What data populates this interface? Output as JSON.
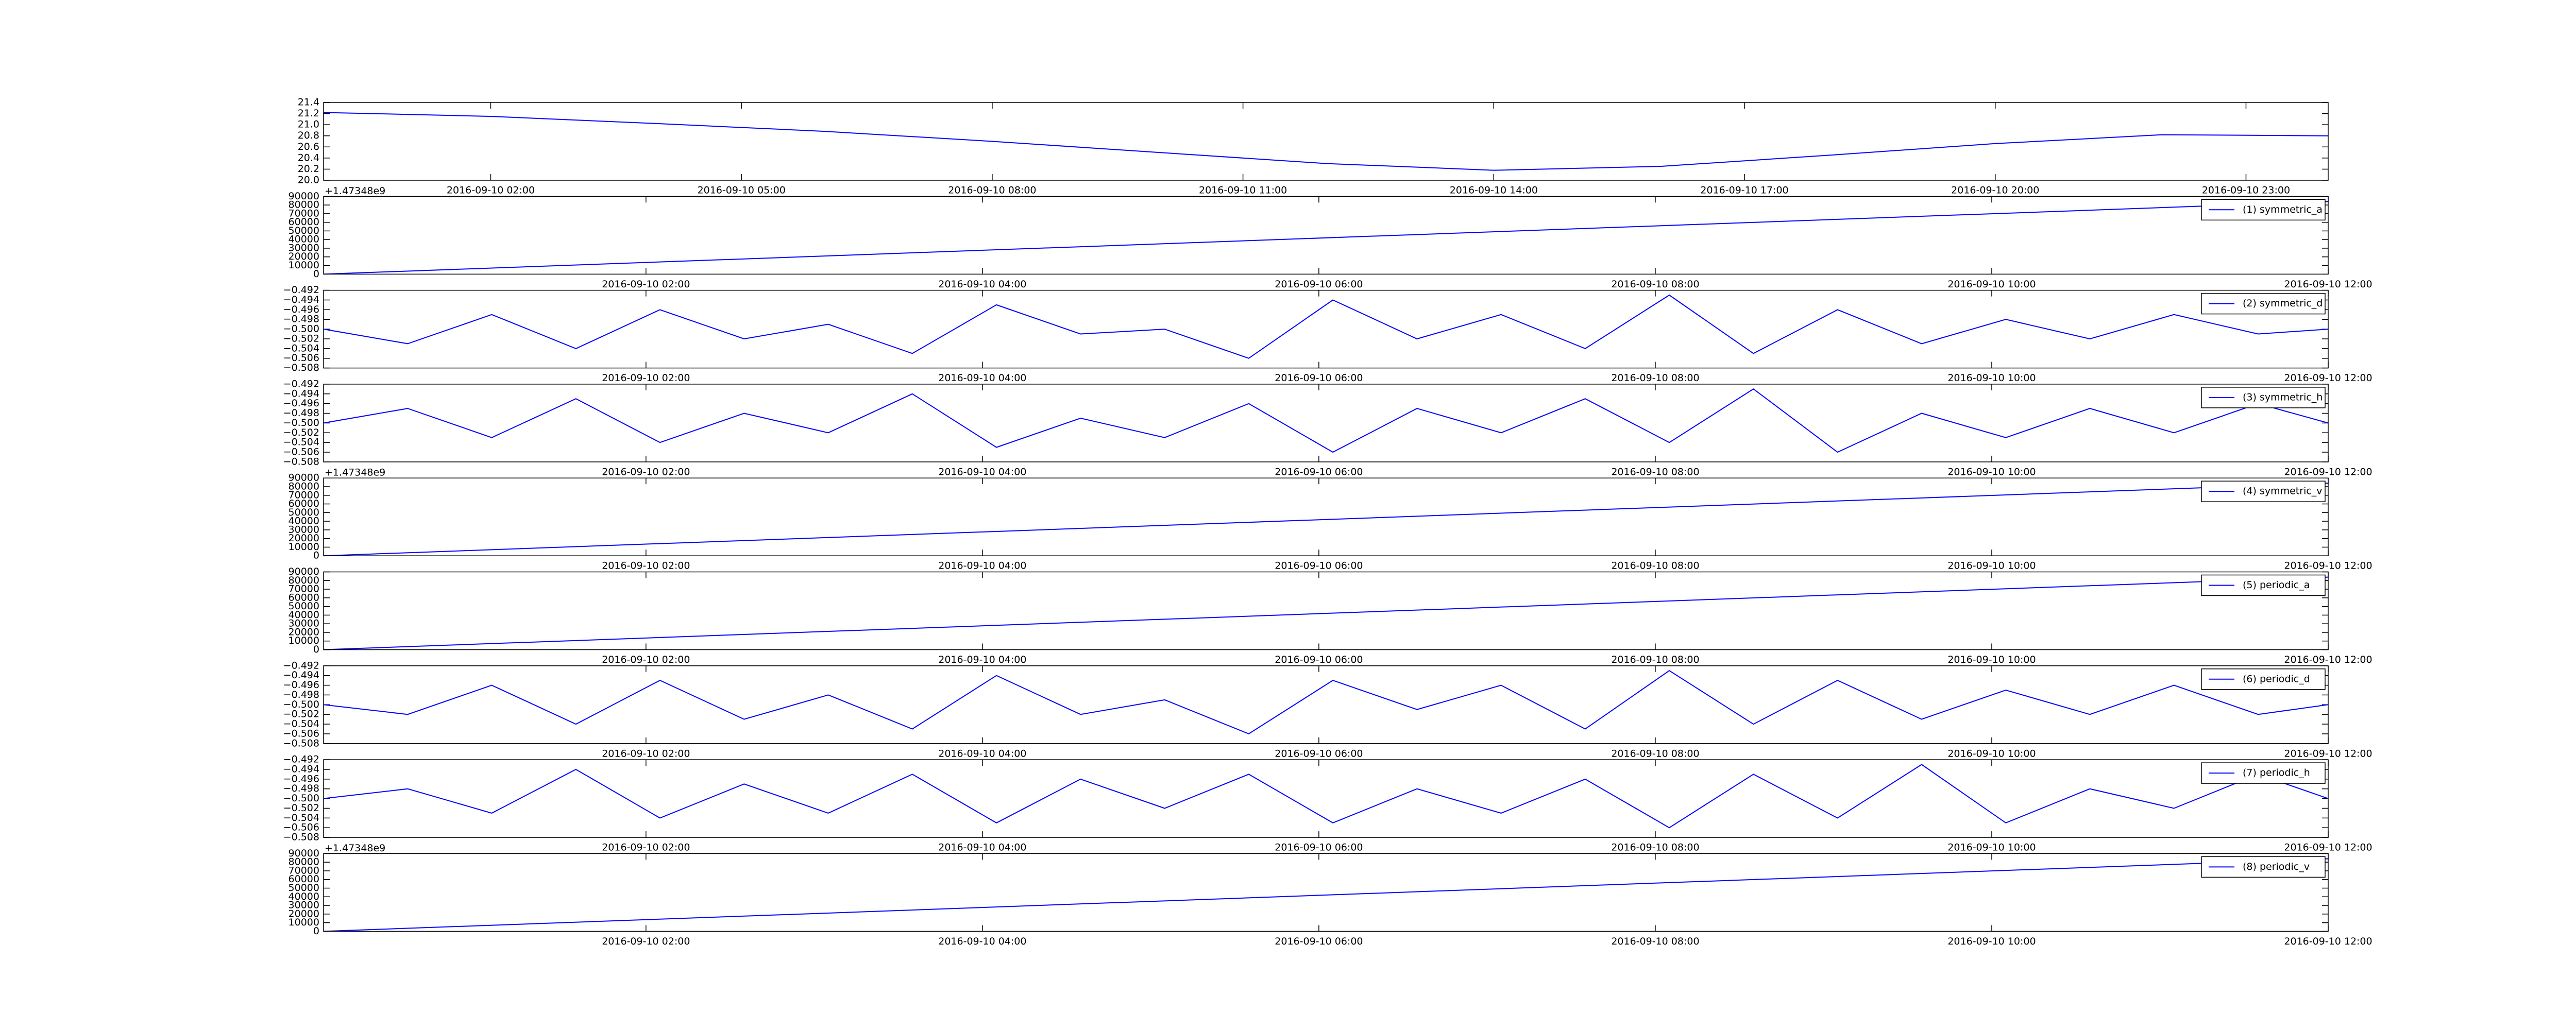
{
  "chart_data": [
    {
      "type": "line",
      "xlim": [
        "2016-09-10 00:00",
        "2016-09-10 23:59"
      ],
      "xticks": [
        "2016-09-10 02:00",
        "2016-09-10 05:00",
        "2016-09-10 08:00",
        "2016-09-10 11:00",
        "2016-09-10 14:00",
        "2016-09-10 17:00",
        "2016-09-10 20:00",
        "2016-09-10 23:00"
      ],
      "ylim": [
        20.0,
        21.4
      ],
      "yticks": [
        {
          "value": 20.0,
          "label": "20.0"
        },
        20.2,
        20.4,
        20.6,
        20.8,
        {
          "value": 21.0,
          "label": "21.0"
        },
        21.2,
        21.4
      ],
      "series": [
        {
          "color": "#0000ff",
          "x": [
            "2016-09-10 00:00",
            "2016-09-10 02:00",
            "2016-09-10 04:00",
            "2016-09-10 06:00",
            "2016-09-10 08:00",
            "2016-09-10 10:00",
            "2016-09-10 12:00",
            "2016-09-10 14:00",
            "2016-09-10 16:00",
            "2016-09-10 18:00",
            "2016-09-10 20:00",
            "2016-09-10 22:00",
            "2016-09-10 23:59"
          ],
          "values": [
            21.22,
            21.15,
            21.02,
            20.88,
            20.7,
            20.5,
            20.3,
            20.18,
            20.25,
            20.45,
            20.66,
            20.82,
            20.8
          ]
        }
      ]
    },
    {
      "type": "line",
      "offset_label": "+1.47348e9",
      "legend": "upper right",
      "xlim": [
        "2016-09-10 00:05",
        "2016-09-10 12:00"
      ],
      "xticks": [
        "2016-09-10 02:00",
        "2016-09-10 04:00",
        "2016-09-10 06:00",
        "2016-09-10 08:00",
        "2016-09-10 10:00",
        "2016-09-10 12:00"
      ],
      "ylim": [
        0,
        90000
      ],
      "yticks": [
        0,
        10000,
        20000,
        30000,
        40000,
        50000,
        60000,
        70000,
        80000,
        90000
      ],
      "series": [
        {
          "name": "(1) symmetric_a",
          "color": "#0000ff",
          "x": [
            "2016-09-10 00:05",
            "2016-09-10 12:00"
          ],
          "values": [
            0,
            84000
          ]
        }
      ]
    },
    {
      "type": "line",
      "legend": "upper right",
      "xlim": [
        "2016-09-10 00:05",
        "2016-09-10 12:00"
      ],
      "xticks": [
        "2016-09-10 02:00",
        "2016-09-10 04:00",
        "2016-09-10 06:00",
        "2016-09-10 08:00",
        "2016-09-10 10:00",
        "2016-09-10 12:00"
      ],
      "ylim": [
        -0.508,
        -0.492
      ],
      "yticks": [
        {
          "value": -0.508,
          "label": "−0.508"
        },
        {
          "value": -0.506,
          "label": "−0.506"
        },
        {
          "value": -0.504,
          "label": "−0.504"
        },
        {
          "value": -0.502,
          "label": "−0.502"
        },
        {
          "value": -0.5,
          "label": "−0.500"
        },
        {
          "value": -0.498,
          "label": "−0.498"
        },
        {
          "value": -0.496,
          "label": "−0.496"
        },
        {
          "value": -0.494,
          "label": "−0.494"
        },
        {
          "value": -0.492,
          "label": "−0.492"
        }
      ],
      "series": [
        {
          "name": "(2) symmetric_d",
          "color": "#0000ff",
          "x": [
            "2016-09-10 00:05",
            "2016-09-10 00:35",
            "2016-09-10 01:05",
            "2016-09-10 01:35",
            "2016-09-10 02:05",
            "2016-09-10 02:35",
            "2016-09-10 03:05",
            "2016-09-10 03:35",
            "2016-09-10 04:05",
            "2016-09-10 04:35",
            "2016-09-10 05:05",
            "2016-09-10 05:35",
            "2016-09-10 06:05",
            "2016-09-10 06:35",
            "2016-09-10 07:05",
            "2016-09-10 07:35",
            "2016-09-10 08:05",
            "2016-09-10 08:35",
            "2016-09-10 09:05",
            "2016-09-10 09:35",
            "2016-09-10 10:05",
            "2016-09-10 10:35",
            "2016-09-10 11:05",
            "2016-09-10 11:35",
            "2016-09-10 12:00"
          ],
          "values": [
            -0.5,
            -0.503,
            -0.497,
            -0.504,
            -0.496,
            -0.502,
            -0.499,
            -0.505,
            -0.495,
            -0.501,
            -0.5,
            -0.506,
            -0.494,
            -0.502,
            -0.497,
            -0.504,
            -0.493,
            -0.505,
            -0.496,
            -0.503,
            -0.498,
            -0.502,
            -0.497,
            -0.501,
            -0.5
          ]
        }
      ]
    },
    {
      "type": "line",
      "legend": "upper right",
      "xlim": [
        "2016-09-10 00:05",
        "2016-09-10 12:00"
      ],
      "xticks": [
        "2016-09-10 02:00",
        "2016-09-10 04:00",
        "2016-09-10 06:00",
        "2016-09-10 08:00",
        "2016-09-10 10:00",
        "2016-09-10 12:00"
      ],
      "ylim": [
        -0.508,
        -0.492
      ],
      "yticks": [
        {
          "value": -0.508,
          "label": "−0.508"
        },
        {
          "value": -0.506,
          "label": "−0.506"
        },
        {
          "value": -0.504,
          "label": "−0.504"
        },
        {
          "value": -0.502,
          "label": "−0.502"
        },
        {
          "value": -0.5,
          "label": "−0.500"
        },
        {
          "value": -0.498,
          "label": "−0.498"
        },
        {
          "value": -0.496,
          "label": "−0.496"
        },
        {
          "value": -0.494,
          "label": "−0.494"
        },
        {
          "value": -0.492,
          "label": "−0.492"
        }
      ],
      "series": [
        {
          "name": "(3) symmetric_h",
          "color": "#0000ff",
          "x": [
            "2016-09-10 00:05",
            "2016-09-10 00:35",
            "2016-09-10 01:05",
            "2016-09-10 01:35",
            "2016-09-10 02:05",
            "2016-09-10 02:35",
            "2016-09-10 03:05",
            "2016-09-10 03:35",
            "2016-09-10 04:05",
            "2016-09-10 04:35",
            "2016-09-10 05:05",
            "2016-09-10 05:35",
            "2016-09-10 06:05",
            "2016-09-10 06:35",
            "2016-09-10 07:05",
            "2016-09-10 07:35",
            "2016-09-10 08:05",
            "2016-09-10 08:35",
            "2016-09-10 09:05",
            "2016-09-10 09:35",
            "2016-09-10 10:05",
            "2016-09-10 10:35",
            "2016-09-10 11:05",
            "2016-09-10 11:35",
            "2016-09-10 12:00"
          ],
          "values": [
            -0.5,
            -0.497,
            -0.503,
            -0.495,
            -0.504,
            -0.498,
            -0.502,
            -0.494,
            -0.505,
            -0.499,
            -0.503,
            -0.496,
            -0.506,
            -0.497,
            -0.502,
            -0.495,
            -0.504,
            -0.493,
            -0.506,
            -0.498,
            -0.503,
            -0.497,
            -0.502,
            -0.496,
            -0.5
          ]
        }
      ]
    },
    {
      "type": "line",
      "offset_label": "+1.47348e9",
      "legend": "upper right",
      "xlim": [
        "2016-09-10 00:05",
        "2016-09-10 12:00"
      ],
      "xticks": [
        "2016-09-10 02:00",
        "2016-09-10 04:00",
        "2016-09-10 06:00",
        "2016-09-10 08:00",
        "2016-09-10 10:00",
        "2016-09-10 12:00"
      ],
      "ylim": [
        0,
        90000
      ],
      "yticks": [
        0,
        10000,
        20000,
        30000,
        40000,
        50000,
        60000,
        70000,
        80000,
        90000
      ],
      "series": [
        {
          "name": "(4) symmetric_v",
          "color": "#0000ff",
          "x": [
            "2016-09-10 00:05",
            "2016-09-10 12:00"
          ],
          "values": [
            0,
            84000
          ]
        }
      ]
    },
    {
      "type": "line",
      "legend": "upper right",
      "xlim": [
        "2016-09-10 00:05",
        "2016-09-10 12:00"
      ],
      "xticks": [
        "2016-09-10 02:00",
        "2016-09-10 04:00",
        "2016-09-10 06:00",
        "2016-09-10 08:00",
        "2016-09-10 10:00",
        "2016-09-10 12:00"
      ],
      "ylim": [
        0,
        90000
      ],
      "yticks": [
        0,
        10000,
        20000,
        30000,
        40000,
        50000,
        60000,
        70000,
        80000,
        90000
      ],
      "series": [
        {
          "name": "(5) periodic_a",
          "color": "#0000ff",
          "x": [
            "2016-09-10 00:05",
            "2016-09-10 12:00"
          ],
          "values": [
            0,
            84000
          ]
        }
      ]
    },
    {
      "type": "line",
      "legend": "upper right",
      "xlim": [
        "2016-09-10 00:05",
        "2016-09-10 12:00"
      ],
      "xticks": [
        "2016-09-10 02:00",
        "2016-09-10 04:00",
        "2016-09-10 06:00",
        "2016-09-10 08:00",
        "2016-09-10 10:00",
        "2016-09-10 12:00"
      ],
      "ylim": [
        -0.508,
        -0.492
      ],
      "yticks": [
        {
          "value": -0.508,
          "label": "−0.508"
        },
        {
          "value": -0.506,
          "label": "−0.506"
        },
        {
          "value": -0.504,
          "label": "−0.504"
        },
        {
          "value": -0.502,
          "label": "−0.502"
        },
        {
          "value": -0.5,
          "label": "−0.500"
        },
        {
          "value": -0.498,
          "label": "−0.498"
        },
        {
          "value": -0.496,
          "label": "−0.496"
        },
        {
          "value": -0.494,
          "label": "−0.494"
        },
        {
          "value": -0.492,
          "label": "−0.492"
        }
      ],
      "series": [
        {
          "name": "(6) periodic_d",
          "color": "#0000ff",
          "x": [
            "2016-09-10 00:05",
            "2016-09-10 00:35",
            "2016-09-10 01:05",
            "2016-09-10 01:35",
            "2016-09-10 02:05",
            "2016-09-10 02:35",
            "2016-09-10 03:05",
            "2016-09-10 03:35",
            "2016-09-10 04:05",
            "2016-09-10 04:35",
            "2016-09-10 05:05",
            "2016-09-10 05:35",
            "2016-09-10 06:05",
            "2016-09-10 06:35",
            "2016-09-10 07:05",
            "2016-09-10 07:35",
            "2016-09-10 08:05",
            "2016-09-10 08:35",
            "2016-09-10 09:05",
            "2016-09-10 09:35",
            "2016-09-10 10:05",
            "2016-09-10 10:35",
            "2016-09-10 11:05",
            "2016-09-10 11:35",
            "2016-09-10 12:00"
          ],
          "values": [
            -0.5,
            -0.502,
            -0.496,
            -0.504,
            -0.495,
            -0.503,
            -0.498,
            -0.505,
            -0.494,
            -0.502,
            -0.499,
            -0.506,
            -0.495,
            -0.501,
            -0.496,
            -0.505,
            -0.493,
            -0.504,
            -0.495,
            -0.503,
            -0.497,
            -0.502,
            -0.496,
            -0.502,
            -0.5
          ]
        }
      ]
    },
    {
      "type": "line",
      "legend": "upper right",
      "xlim": [
        "2016-09-10 00:05",
        "2016-09-10 12:00"
      ],
      "xticks": [
        "2016-09-10 02:00",
        "2016-09-10 04:00",
        "2016-09-10 06:00",
        "2016-09-10 08:00",
        "2016-09-10 10:00",
        "2016-09-10 12:00"
      ],
      "ylim": [
        -0.508,
        -0.492
      ],
      "yticks": [
        {
          "value": -0.508,
          "label": "−0.508"
        },
        {
          "value": -0.506,
          "label": "−0.506"
        },
        {
          "value": -0.504,
          "label": "−0.504"
        },
        {
          "value": -0.502,
          "label": "−0.502"
        },
        {
          "value": -0.5,
          "label": "−0.500"
        },
        {
          "value": -0.498,
          "label": "−0.498"
        },
        {
          "value": -0.496,
          "label": "−0.496"
        },
        {
          "value": -0.494,
          "label": "−0.494"
        },
        {
          "value": -0.492,
          "label": "−0.492"
        }
      ],
      "series": [
        {
          "name": "(7) periodic_h",
          "color": "#0000ff",
          "x": [
            "2016-09-10 00:05",
            "2016-09-10 00:35",
            "2016-09-10 01:05",
            "2016-09-10 01:35",
            "2016-09-10 02:05",
            "2016-09-10 02:35",
            "2016-09-10 03:05",
            "2016-09-10 03:35",
            "2016-09-10 04:05",
            "2016-09-10 04:35",
            "2016-09-10 05:05",
            "2016-09-10 05:35",
            "2016-09-10 06:05",
            "2016-09-10 06:35",
            "2016-09-10 07:05",
            "2016-09-10 07:35",
            "2016-09-10 08:05",
            "2016-09-10 08:35",
            "2016-09-10 09:05",
            "2016-09-10 09:35",
            "2016-09-10 10:05",
            "2016-09-10 10:35",
            "2016-09-10 11:05",
            "2016-09-10 11:35",
            "2016-09-10 12:00"
          ],
          "values": [
            -0.5,
            -0.498,
            -0.503,
            -0.494,
            -0.504,
            -0.497,
            -0.503,
            -0.495,
            -0.505,
            -0.496,
            -0.502,
            -0.495,
            -0.505,
            -0.498,
            -0.503,
            -0.496,
            -0.506,
            -0.495,
            -0.504,
            -0.493,
            -0.505,
            -0.498,
            -0.502,
            -0.495,
            -0.5
          ]
        }
      ]
    },
    {
      "type": "line",
      "offset_label": "+1.47348e9",
      "legend": "upper right",
      "xlim": [
        "2016-09-10 00:05",
        "2016-09-10 12:00"
      ],
      "xticks": [
        "2016-09-10 02:00",
        "2016-09-10 04:00",
        "2016-09-10 06:00",
        "2016-09-10 08:00",
        "2016-09-10 10:00",
        "2016-09-10 12:00"
      ],
      "ylim": [
        0,
        90000
      ],
      "yticks": [
        0,
        10000,
        20000,
        30000,
        40000,
        50000,
        60000,
        70000,
        80000,
        90000
      ],
      "series": [
        {
          "name": "(8) periodic_v",
          "color": "#0000ff",
          "x": [
            "2016-09-10 00:05",
            "2016-09-10 12:00"
          ],
          "values": [
            0,
            84000
          ]
        }
      ]
    }
  ]
}
